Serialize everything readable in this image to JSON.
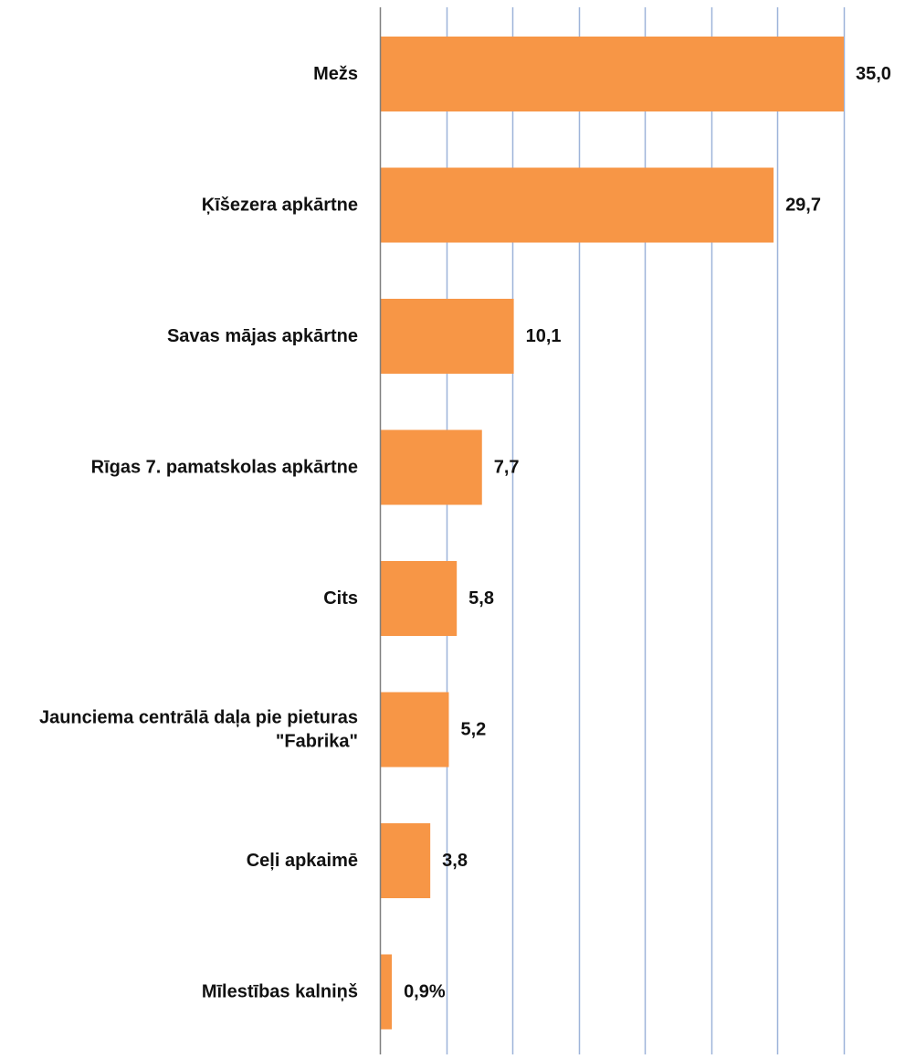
{
  "colors": {
    "bar": "#F79646",
    "grid": "#9DB3D9",
    "axis": "#7F7F7F",
    "text": "#111111"
  },
  "chart_data": {
    "type": "bar",
    "orientation": "horizontal",
    "categories": [
      "Mežs",
      "Ķīšezera apkārtne",
      "Savas mājas apkārtne",
      "Rīgas 7. pamatskolas apkārtne",
      "Cits",
      "Jaunciema centrālā daļa pie pieturas \"Fabrika\"",
      "Ceļi apkaimē",
      "Mīlestības kalniņš"
    ],
    "category_lines": [
      [
        "Mežs"
      ],
      [
        "Ķīšezera apkārtne"
      ],
      [
        "Savas mājas apkārtne"
      ],
      [
        "Rīgas 7. pamatskolas apkārtne"
      ],
      [
        "Cits"
      ],
      [
        "Jaunciema centrālā daļa pie pieturas",
        "\"Fabrika\""
      ],
      [
        "Ceļi apkaimē"
      ],
      [
        "Mīlestības kalniņš"
      ]
    ],
    "values": [
      35.0,
      29.7,
      10.1,
      7.7,
      5.8,
      5.2,
      3.8,
      0.9
    ],
    "value_labels": [
      "35,0",
      "29,7",
      "10,1",
      "7,7",
      "5,8",
      "5,2",
      "3,8",
      "0,9%"
    ],
    "xlim": [
      0,
      35
    ],
    "grid_step": 5,
    "grid": true,
    "legend": "none",
    "title": "",
    "xlabel": "",
    "ylabel": ""
  }
}
